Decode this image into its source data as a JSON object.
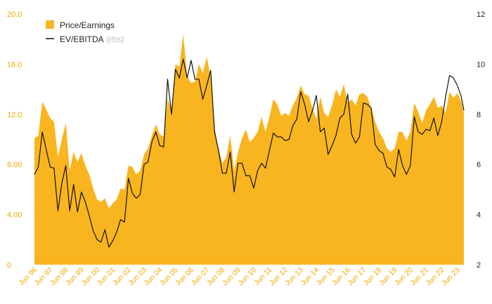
{
  "chart_data": {
    "type": "area",
    "colors": {
      "area": "#f9b51f",
      "line": "#111111",
      "left_axis_text": "#f2a900",
      "right_axis_text": "#222222"
    },
    "legend": {
      "placement": "top-left",
      "items": [
        {
          "label": "Price/Earnings",
          "suffix": "",
          "marker": "square"
        },
        {
          "label": "EV/EBITDA",
          "suffix": "(rhs)",
          "marker": "line"
        }
      ]
    },
    "left_axis": {
      "ylim": [
        0,
        20
      ],
      "ticks": [
        "0",
        "4.00",
        "8.00",
        "12.0",
        "16.0",
        "20.0"
      ],
      "tick_values": [
        0,
        4,
        8,
        12,
        16,
        20
      ]
    },
    "right_axis": {
      "ylim": [
        2,
        12
      ],
      "ticks": [
        "2",
        "4",
        "6",
        "8",
        "10",
        "12"
      ],
      "tick_values": [
        2,
        4,
        6,
        8,
        10,
        12
      ]
    },
    "x_start": "Jun 96",
    "x_end": "Nov 23",
    "x_ticks": [
      "Jun 96",
      "Jun 97",
      "Jun 98",
      "Jun 99",
      "Jun 00",
      "Jun 01",
      "Jun 02",
      "Jun 03",
      "Jun 04",
      "Jun 05",
      "Jun 06",
      "Jun 07",
      "Jun 08",
      "Jun 09",
      "Jun 10",
      "Jun 11",
      "Jun 12",
      "Jun 13",
      "Jun 14",
      "Jun 15",
      "Jun 16",
      "Jun 17",
      "Jun 18",
      "Jun 19",
      "Jun 20",
      "Jun 21",
      "Jun 22",
      "Jun 23"
    ],
    "series": [
      {
        "name": "Price/Earnings",
        "axis": "left",
        "style": "area",
        "points": [
          [
            "Jun 96",
            10.1
          ],
          [
            "Sep 96",
            10.3
          ],
          [
            "Dec 96",
            13.0
          ],
          [
            "Mar 97",
            12.4
          ],
          [
            "Jun 97",
            11.7
          ],
          [
            "Sep 97",
            11.4
          ],
          [
            "Dec 97",
            8.6
          ],
          [
            "Mar 98",
            10.0
          ],
          [
            "Jun 98",
            11.3
          ],
          [
            "Sep 98",
            7.5
          ],
          [
            "Dec 98",
            9.0
          ],
          [
            "Mar 99",
            8.2
          ],
          [
            "Jun 99",
            8.9
          ],
          [
            "Sep 99",
            7.9
          ],
          [
            "Dec 99",
            7.2
          ],
          [
            "Mar 00",
            6.1
          ],
          [
            "Jun 00",
            5.2
          ],
          [
            "Sep 00",
            5.0
          ],
          [
            "Dec 00",
            5.3
          ],
          [
            "Mar 01",
            4.5
          ],
          [
            "Jun 01",
            4.9
          ],
          [
            "Sep 01",
            5.2
          ],
          [
            "Dec 01",
            6.1
          ],
          [
            "Mar 02",
            6.0
          ],
          [
            "Jun 02",
            7.9
          ],
          [
            "Sep 02",
            7.8
          ],
          [
            "Dec 02",
            7.2
          ],
          [
            "Mar 03",
            7.5
          ],
          [
            "Jun 03",
            8.8
          ],
          [
            "Sep 03",
            9.3
          ],
          [
            "Dec 03",
            10.3
          ],
          [
            "Mar 04",
            11.2
          ],
          [
            "Jun 04",
            10.4
          ],
          [
            "Sep 04",
            10.2
          ],
          [
            "Dec 04",
            13.2
          ],
          [
            "Mar 05",
            12.4
          ],
          [
            "Jun 05",
            16.0
          ],
          [
            "Sep 05",
            15.8
          ],
          [
            "Dec 05",
            18.4
          ],
          [
            "Mar 06",
            15.0
          ],
          [
            "Jun 06",
            14.5
          ],
          [
            "Sep 06",
            14.6
          ],
          [
            "Dec 06",
            16.0
          ],
          [
            "Mar 07",
            15.3
          ],
          [
            "Jun 07",
            16.6
          ],
          [
            "Sep 07",
            15.0
          ],
          [
            "Dec 07",
            10.9
          ],
          [
            "Mar 08",
            9.3
          ],
          [
            "Jun 08",
            8.1
          ],
          [
            "Sep 08",
            8.6
          ],
          [
            "Dec 08",
            10.3
          ],
          [
            "Mar 09",
            7.5
          ],
          [
            "Jun 09",
            9.0
          ],
          [
            "Sep 09",
            10.1
          ],
          [
            "Dec 09",
            10.8
          ],
          [
            "Mar 10",
            9.8
          ],
          [
            "Jun 10",
            10.1
          ],
          [
            "Sep 10",
            10.6
          ],
          [
            "Dec 10",
            11.8
          ],
          [
            "Mar 11",
            10.6
          ],
          [
            "Jun 11",
            11.8
          ],
          [
            "Sep 11",
            13.2
          ],
          [
            "Dec 11",
            12.8
          ],
          [
            "Mar 12",
            11.9
          ],
          [
            "Jun 12",
            12.1
          ],
          [
            "Sep 12",
            11.9
          ],
          [
            "Dec 12",
            12.7
          ],
          [
            "Mar 13",
            13.3
          ],
          [
            "Jun 13",
            14.3
          ],
          [
            "Sep 13",
            13.6
          ],
          [
            "Dec 13",
            13.5
          ],
          [
            "Mar 14",
            12.5
          ],
          [
            "Jun 14",
            11.6
          ],
          [
            "Sep 14",
            13.4
          ],
          [
            "Dec 14",
            12.1
          ],
          [
            "Mar 15",
            11.8
          ],
          [
            "Jun 15",
            12.7
          ],
          [
            "Sep 15",
            14.0
          ],
          [
            "Dec 15",
            13.4
          ],
          [
            "Mar 16",
            14.4
          ],
          [
            "Jun 16",
            12.9
          ],
          [
            "Sep 16",
            13.2
          ],
          [
            "Dec 16",
            12.7
          ],
          [
            "Mar 17",
            13.6
          ],
          [
            "Jun 17",
            13.7
          ],
          [
            "Sep 17",
            13.4
          ],
          [
            "Dec 17",
            12.5
          ],
          [
            "Mar 18",
            11.4
          ],
          [
            "Jun 18",
            10.6
          ],
          [
            "Sep 18",
            10.1
          ],
          [
            "Dec 18",
            9.3
          ],
          [
            "Mar 19",
            9.0
          ],
          [
            "Jun 19",
            9.3
          ],
          [
            "Sep 19",
            10.6
          ],
          [
            "Dec 19",
            10.6
          ],
          [
            "Mar 20",
            9.9
          ],
          [
            "Jun 20",
            10.6
          ],
          [
            "Sep 20",
            12.9
          ],
          [
            "Dec 20",
            12.2
          ],
          [
            "Mar 21",
            11.3
          ],
          [
            "Jun 21",
            12.3
          ],
          [
            "Sep 21",
            12.8
          ],
          [
            "Dec 21",
            13.4
          ],
          [
            "Mar 22",
            12.5
          ],
          [
            "Jun 22",
            12.7
          ],
          [
            "Sep 22",
            12.1
          ],
          [
            "Dec 22",
            13.8
          ],
          [
            "Mar 23",
            13.3
          ],
          [
            "Jun 23",
            13.7
          ],
          [
            "Sep 23",
            13.0
          ],
          [
            "Nov 23",
            12.1
          ]
        ]
      },
      {
        "name": "EV/EBITDA",
        "axis": "right",
        "style": "line",
        "points": [
          [
            "Jun 96",
            5.6
          ],
          [
            "Sep 96",
            5.9
          ],
          [
            "Dec 96",
            7.3
          ],
          [
            "Mar 97",
            6.6
          ],
          [
            "Jun 97",
            5.9
          ],
          [
            "Sep 97",
            5.85
          ],
          [
            "Dec 97",
            4.15
          ],
          [
            "Mar 98",
            5.25
          ],
          [
            "Jun 98",
            5.95
          ],
          [
            "Sep 98",
            4.15
          ],
          [
            "Dec 98",
            5.2
          ],
          [
            "Mar 99",
            4.1
          ],
          [
            "Jun 99",
            4.9
          ],
          [
            "Sep 99",
            4.5
          ],
          [
            "Dec 99",
            3.95
          ],
          [
            "Mar 00",
            3.35
          ],
          [
            "Jun 00",
            3.0
          ],
          [
            "Sep 00",
            2.9
          ],
          [
            "Dec 00",
            3.4
          ],
          [
            "Mar 01",
            2.7
          ],
          [
            "Jun 01",
            2.95
          ],
          [
            "Sep 01",
            3.3
          ],
          [
            "Dec 01",
            3.8
          ],
          [
            "Mar 02",
            3.7
          ],
          [
            "Jun 02",
            5.45
          ],
          [
            "Sep 02",
            4.85
          ],
          [
            "Dec 02",
            4.65
          ],
          [
            "Mar 03",
            4.8
          ],
          [
            "Jun 03",
            6.0
          ],
          [
            "Sep 03",
            6.1
          ],
          [
            "Dec 03",
            6.9
          ],
          [
            "Mar 04",
            7.3
          ],
          [
            "Jun 04",
            6.75
          ],
          [
            "Sep 04",
            6.7
          ],
          [
            "Dec 04",
            9.4
          ],
          [
            "Mar 05",
            8.0
          ],
          [
            "Jun 05",
            9.8
          ],
          [
            "Sep 05",
            9.45
          ],
          [
            "Dec 05",
            10.2
          ],
          [
            "Mar 06",
            9.45
          ],
          [
            "Jun 06",
            10.15
          ],
          [
            "Sep 06",
            9.4
          ],
          [
            "Dec 06",
            9.4
          ],
          [
            "Mar 07",
            8.6
          ],
          [
            "Jun 07",
            9.15
          ],
          [
            "Sep 07",
            9.75
          ],
          [
            "Dec 07",
            7.3
          ],
          [
            "Mar 08",
            6.55
          ],
          [
            "Jun 08",
            5.65
          ],
          [
            "Sep 08",
            5.65
          ],
          [
            "Dec 08",
            6.5
          ],
          [
            "Mar 09",
            4.9
          ],
          [
            "Jun 09",
            6.05
          ],
          [
            "Sep 09",
            6.05
          ],
          [
            "Dec 09",
            5.55
          ],
          [
            "Mar 10",
            5.55
          ],
          [
            "Jun 10",
            5.05
          ],
          [
            "Sep 10",
            5.75
          ],
          [
            "Dec 10",
            6.05
          ],
          [
            "Mar 11",
            5.85
          ],
          [
            "Jun 11",
            6.55
          ],
          [
            "Sep 11",
            7.25
          ],
          [
            "Dec 11",
            7.1
          ],
          [
            "Mar 12",
            7.1
          ],
          [
            "Jun 12",
            6.95
          ],
          [
            "Sep 12",
            7.0
          ],
          [
            "Dec 12",
            7.55
          ],
          [
            "Mar 13",
            7.8
          ],
          [
            "Jun 13",
            8.9
          ],
          [
            "Sep 13",
            8.4
          ],
          [
            "Dec 13",
            7.7
          ],
          [
            "Mar 14",
            8.15
          ],
          [
            "Jun 14",
            8.75
          ],
          [
            "Sep 14",
            7.3
          ],
          [
            "Dec 14",
            7.45
          ],
          [
            "Mar 15",
            6.4
          ],
          [
            "Jun 15",
            6.75
          ],
          [
            "Sep 15",
            7.15
          ],
          [
            "Dec 15",
            7.85
          ],
          [
            "Mar 16",
            8.0
          ],
          [
            "Jun 16",
            8.8
          ],
          [
            "Sep 16",
            7.2
          ],
          [
            "Dec 16",
            6.85
          ],
          [
            "Mar 17",
            7.1
          ],
          [
            "Jun 17",
            8.45
          ],
          [
            "Sep 17",
            8.4
          ],
          [
            "Dec 17",
            8.25
          ],
          [
            "Mar 18",
            6.8
          ],
          [
            "Jun 18",
            6.55
          ],
          [
            "Sep 18",
            6.45
          ],
          [
            "Dec 18",
            5.9
          ],
          [
            "Mar 19",
            5.8
          ],
          [
            "Jun 19",
            5.5
          ],
          [
            "Sep 19",
            6.6
          ],
          [
            "Dec 19",
            5.95
          ],
          [
            "Mar 20",
            5.6
          ],
          [
            "Jun 20",
            5.95
          ],
          [
            "Sep 20",
            7.9
          ],
          [
            "Dec 20",
            7.3
          ],
          [
            "Mar 21",
            7.2
          ],
          [
            "Jun 21",
            7.4
          ],
          [
            "Sep 21",
            7.35
          ],
          [
            "Dec 21",
            7.85
          ],
          [
            "Mar 22",
            7.15
          ],
          [
            "Jun 22",
            7.7
          ],
          [
            "Sep 22",
            8.7
          ],
          [
            "Dec 22",
            9.55
          ],
          [
            "Mar 23",
            9.45
          ],
          [
            "Jun 23",
            9.15
          ],
          [
            "Sep 23",
            8.7
          ],
          [
            "Nov 23",
            8.15
          ]
        ]
      }
    ]
  }
}
